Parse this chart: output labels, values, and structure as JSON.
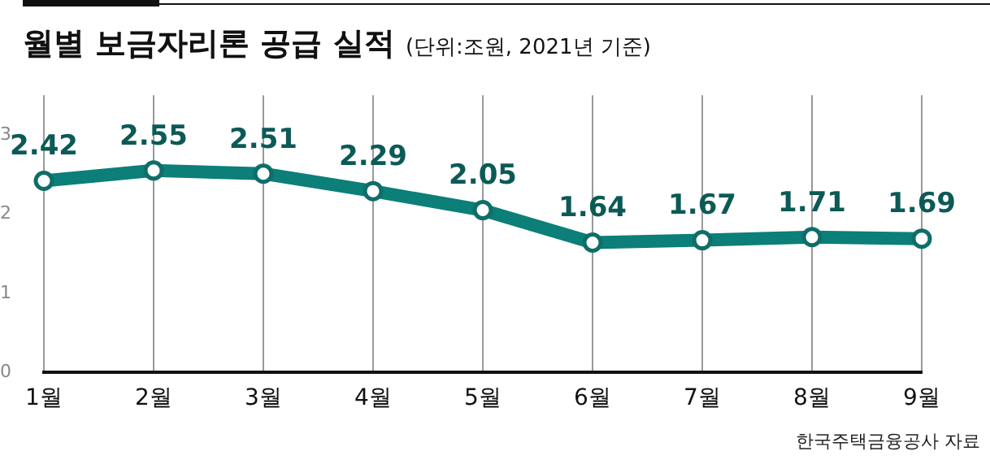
{
  "chart_data": {
    "type": "line",
    "title": "월별 보금자리론 공급 실적",
    "subtitle": "(단위:조원, 2021년 기준)",
    "categories": [
      "1월",
      "2월",
      "3월",
      "4월",
      "5월",
      "6월",
      "7월",
      "8월",
      "9월"
    ],
    "series": [
      {
        "color": "#0b7f78",
        "values": [
          2.42,
          2.55,
          2.51,
          2.29,
          2.05,
          1.64,
          1.67,
          1.71,
          1.69
        ]
      }
    ],
    "ylim": [
      0,
      3.5
    ],
    "yticks": [
      0,
      1,
      2,
      3
    ],
    "grid": "x",
    "legend": false,
    "marker": "circle",
    "line_style": "solid",
    "data_labels": true,
    "annotations": [
      "한국주택금융공사 자료"
    ]
  }
}
